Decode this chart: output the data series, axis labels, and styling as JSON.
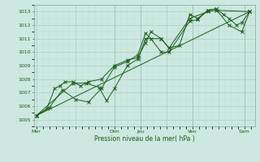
{
  "xlabel": "Pression niveau de la mer( hPa )",
  "ylim": [
    1004.5,
    1013.5
  ],
  "yticks": [
    1005,
    1006,
    1007,
    1008,
    1009,
    1010,
    1011,
    1012,
    1013
  ],
  "xtick_labels": [
    "Mer",
    "",
    "Dim",
    "Jeu",
    "",
    "Ven",
    "",
    "Sam"
  ],
  "xtick_positions": [
    0,
    1.5,
    3,
    4,
    5,
    6,
    7,
    8
  ],
  "xlim": [
    -0.1,
    8.4
  ],
  "bg_color": "#cde8e0",
  "grid_major_color": "#a8cfc6",
  "grid_minor_color": "#bcddd6",
  "line_color": "#1a5c1a",
  "series1": [
    [
      0.0,
      1005.3
    ],
    [
      0.4,
      1005.8
    ],
    [
      0.7,
      1007.3
    ],
    [
      0.9,
      1007.5
    ],
    [
      1.1,
      1007.8
    ],
    [
      1.4,
      1007.8
    ],
    [
      1.7,
      1007.5
    ],
    [
      2.0,
      1007.8
    ],
    [
      2.5,
      1008.0
    ],
    [
      3.0,
      1009.0
    ],
    [
      3.5,
      1009.4
    ],
    [
      3.9,
      1009.6
    ],
    [
      4.2,
      1010.7
    ],
    [
      4.4,
      1011.5
    ],
    [
      4.8,
      1011.0
    ],
    [
      5.1,
      1010.3
    ],
    [
      5.5,
      1010.5
    ],
    [
      5.9,
      1012.8
    ],
    [
      6.2,
      1012.5
    ],
    [
      6.6,
      1013.1
    ],
    [
      6.9,
      1013.2
    ],
    [
      7.2,
      1012.8
    ],
    [
      7.4,
      1012.5
    ],
    [
      7.7,
      1012.0
    ],
    [
      7.9,
      1012.2
    ],
    [
      8.2,
      1013.0
    ]
  ],
  "series2": [
    [
      0.0,
      1005.3
    ],
    [
      0.5,
      1005.9
    ],
    [
      1.0,
      1007.2
    ],
    [
      1.5,
      1006.5
    ],
    [
      2.0,
      1006.3
    ],
    [
      2.5,
      1007.3
    ],
    [
      3.0,
      1008.9
    ],
    [
      3.5,
      1009.3
    ],
    [
      3.9,
      1009.8
    ],
    [
      4.2,
      1011.4
    ],
    [
      4.4,
      1011.0
    ],
    [
      4.8,
      1010.0
    ],
    [
      5.1,
      1010.0
    ],
    [
      5.9,
      1012.3
    ],
    [
      6.2,
      1012.4
    ],
    [
      6.6,
      1013.1
    ],
    [
      6.9,
      1013.2
    ],
    [
      7.4,
      1012.0
    ],
    [
      7.9,
      1011.5
    ],
    [
      8.2,
      1013.0
    ]
  ],
  "series3": [
    [
      0.0,
      1005.3
    ],
    [
      1.4,
      1007.7
    ],
    [
      1.9,
      1007.7
    ],
    [
      2.4,
      1007.4
    ],
    [
      2.7,
      1006.4
    ],
    [
      3.0,
      1007.3
    ],
    [
      3.5,
      1009.0
    ],
    [
      3.9,
      1009.5
    ],
    [
      4.2,
      1011.0
    ],
    [
      4.8,
      1011.0
    ],
    [
      5.1,
      1010.3
    ],
    [
      5.9,
      1012.5
    ],
    [
      6.6,
      1013.0
    ],
    [
      6.9,
      1013.1
    ],
    [
      8.2,
      1013.0
    ]
  ],
  "series4": [
    [
      0.0,
      1005.3
    ],
    [
      8.2,
      1013.0
    ]
  ]
}
